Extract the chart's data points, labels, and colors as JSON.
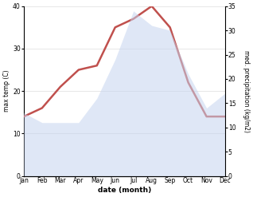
{
  "months": [
    "Jan",
    "Feb",
    "Mar",
    "Apr",
    "May",
    "Jun",
    "Jul",
    "Aug",
    "Sep",
    "Oct",
    "Nov",
    "Dec"
  ],
  "temp": [
    14,
    16,
    21,
    25,
    26,
    35,
    37,
    40,
    35,
    22,
    14,
    14
  ],
  "precip": [
    13,
    11,
    11,
    11,
    16,
    24,
    34,
    31,
    30,
    21,
    14,
    17
  ],
  "temp_color": "#c0504d",
  "precip_color": "#c5d4ef",
  "temp_ylim": [
    0,
    40
  ],
  "precip_ylim": [
    0,
    35
  ],
  "temp_yticks": [
    0,
    10,
    20,
    30,
    40
  ],
  "precip_yticks": [
    0,
    5,
    10,
    15,
    20,
    25,
    30,
    35
  ],
  "ylabel_left": "max temp (C)",
  "ylabel_right": "med. precipitation (kg/m2)",
  "xlabel": "date (month)",
  "background_color": "#ffffff",
  "grid_color": "#dddddd"
}
